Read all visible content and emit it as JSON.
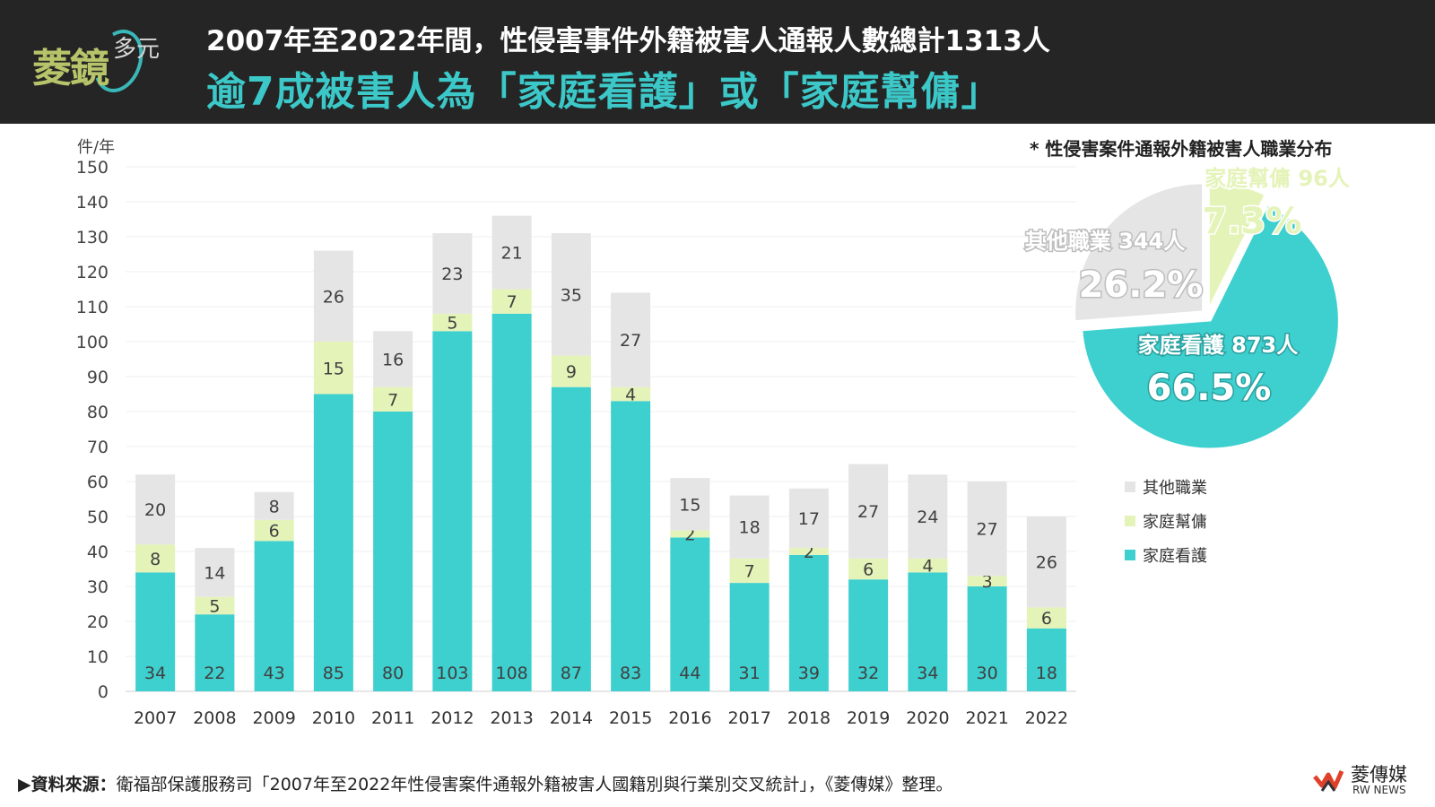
{
  "header": {
    "logo_main": "菱鏡",
    "logo_sub": "多元",
    "title_line1": "2007年至2022年間，性侵害事件外籍被害人通報人數總計1313人",
    "title_line2": "逾7成被害人為「家庭看護」或「家庭幫傭」"
  },
  "colors": {
    "header_bg": "#252525",
    "care": "#3ecfcf",
    "helper": "#e4f3b8",
    "other": "#e6e5e6",
    "title_accent": "#3cc8c8"
  },
  "chart_data": [
    {
      "type": "bar",
      "stacked": true,
      "unit_label": "件/年",
      "categories": [
        "2007",
        "2008",
        "2009",
        "2010",
        "2011",
        "2012",
        "2013",
        "2014",
        "2015",
        "2016",
        "2017",
        "2018",
        "2019",
        "2020",
        "2021",
        "2022"
      ],
      "series": [
        {
          "name": "家庭看護",
          "color": "#3ecfcf",
          "values": [
            34,
            22,
            43,
            85,
            80,
            103,
            108,
            87,
            83,
            44,
            31,
            39,
            32,
            34,
            30,
            18
          ]
        },
        {
          "name": "家庭幫傭",
          "color": "#e4f3b8",
          "values": [
            8,
            5,
            6,
            15,
            7,
            5,
            7,
            9,
            4,
            2,
            7,
            2,
            6,
            4,
            3,
            6
          ]
        },
        {
          "name": "其他職業",
          "color": "#e6e5e6",
          "values": [
            20,
            14,
            8,
            26,
            16,
            23,
            21,
            35,
            27,
            15,
            18,
            17,
            27,
            24,
            27,
            26
          ]
        }
      ],
      "ylim": [
        0,
        150
      ],
      "yticks": [
        0,
        10,
        20,
        30,
        40,
        50,
        60,
        70,
        80,
        90,
        100,
        110,
        120,
        130,
        140,
        150
      ],
      "grid": true,
      "legend": "right"
    },
    {
      "type": "pie",
      "title": "* 性侵害案件通報外籍被害人職業分布",
      "slices": [
        {
          "name": "家庭看護",
          "count_label": "873人",
          "value": 873,
          "percent": "66.5",
          "color": "#3ecfcf"
        },
        {
          "name": "其他職業",
          "count_label": "344人",
          "value": 344,
          "percent": "26.2",
          "color": "#e6e5e6"
        },
        {
          "name": "家庭幫傭",
          "count_label": "96人",
          "value": 96,
          "percent": "7.3",
          "color": "#e4f3b8"
        }
      ]
    }
  ],
  "legend": [
    {
      "label": "其他職業",
      "color": "#e6e5e6"
    },
    {
      "label": "家庭幫傭",
      "color": "#e4f3b8"
    },
    {
      "label": "家庭看護",
      "color": "#3ecfcf"
    }
  ],
  "footer": {
    "source_label": "▶資料來源：",
    "source_text": "衛福部保護服務司「2007年至2022年性侵害案件通報外籍被害人國籍別與行業別交叉統計」，《菱傳媒》整理。",
    "brand_name": "菱傳媒",
    "brand_en": "RW NEWS"
  }
}
